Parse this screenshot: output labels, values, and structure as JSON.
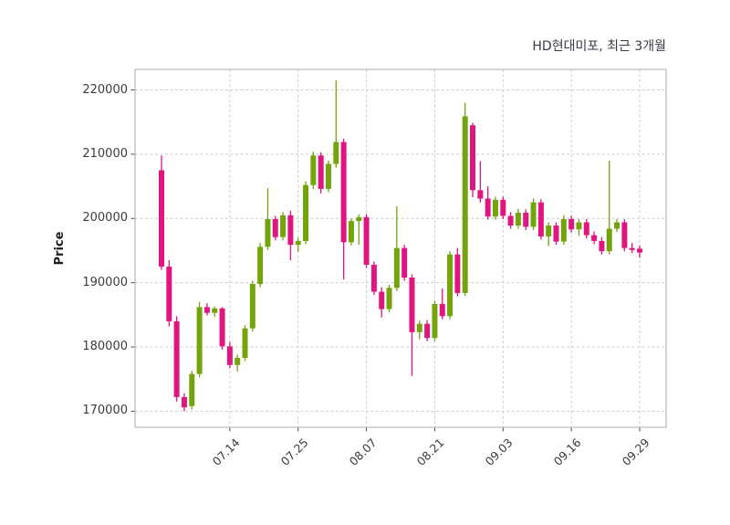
{
  "chart": {
    "title": "HD현대미포, 최근 3개월",
    "ylabel": "Price"
  },
  "colors": {
    "up": "#74a40c",
    "down": "#e0157f",
    "grid": "#cdcdcd",
    "border": "#b9b9b9",
    "tick": "#4a4a4a",
    "axis_text": "#3c3c3c",
    "title_text": "#3a3a46",
    "background": "#ffffff"
  },
  "chart_data": {
    "type": "candlestick",
    "title": "HD현대미포, 최근 3개월",
    "ylabel": "Price",
    "xlabel": "",
    "grid": "dashed",
    "legend": "none",
    "ylim": [
      167500,
      223200
    ],
    "y_ticks": [
      170000,
      180000,
      190000,
      200000,
      210000,
      220000
    ],
    "x_tick_labels": [
      "07.14",
      "07.25",
      "08.07",
      "08.21",
      "09.03",
      "09.16",
      "09.29"
    ],
    "candles_format": [
      "date",
      "open",
      "high",
      "low",
      "close"
    ],
    "candles": [
      [
        "07.01",
        207500,
        209800,
        192000,
        192500
      ],
      [
        "07.02",
        192500,
        193500,
        183200,
        184000
      ],
      [
        "07.03",
        184000,
        184800,
        171500,
        172200
      ],
      [
        "07.04",
        172200,
        172800,
        170000,
        170600
      ],
      [
        "07.07",
        170800,
        176300,
        170300,
        175800
      ],
      [
        "07.08",
        175800,
        187000,
        175300,
        186200
      ],
      [
        "07.09",
        186200,
        186800,
        184900,
        185300
      ],
      [
        "07.10",
        185300,
        186300,
        184700,
        186000
      ],
      [
        "07.11",
        186000,
        186200,
        179600,
        180100
      ],
      [
        "07.14",
        180100,
        180800,
        176700,
        177200
      ],
      [
        "07.15",
        177200,
        178800,
        176200,
        178300
      ],
      [
        "07.16",
        178300,
        183400,
        177800,
        182900
      ],
      [
        "07.17",
        182900,
        190300,
        182400,
        189800
      ],
      [
        "07.18",
        189800,
        196200,
        189300,
        195600
      ],
      [
        "07.21",
        195600,
        204700,
        195100,
        199900
      ],
      [
        "07.22",
        199900,
        200400,
        196600,
        197100
      ],
      [
        "07.23",
        197100,
        201000,
        196600,
        200500
      ],
      [
        "07.24",
        200500,
        201200,
        193500,
        195900
      ],
      [
        "07.25",
        195900,
        197000,
        194800,
        196500
      ],
      [
        "07.28",
        196500,
        205800,
        196000,
        205200
      ],
      [
        "07.29",
        205200,
        210400,
        204600,
        209800
      ],
      [
        "07.30",
        209800,
        210300,
        203900,
        204600
      ],
      [
        "07.31",
        204600,
        209000,
        204100,
        208500
      ],
      [
        "08.01",
        208500,
        221500,
        207900,
        211900
      ],
      [
        "08.04",
        211900,
        212400,
        190500,
        196300
      ],
      [
        "08.05",
        196300,
        200000,
        195800,
        199600
      ],
      [
        "08.06",
        199600,
        200600,
        195900,
        200200
      ],
      [
        "08.07",
        200200,
        200700,
        192300,
        192800
      ],
      [
        "08.08",
        192800,
        193300,
        188100,
        188600
      ],
      [
        "08.11",
        188600,
        189300,
        184600,
        185900
      ],
      [
        "08.12",
        185900,
        189700,
        185400,
        189200
      ],
      [
        "08.13",
        189200,
        201900,
        188700,
        195400
      ],
      [
        "08.14",
        195400,
        195900,
        190300,
        190800
      ],
      [
        "08.18",
        190800,
        191300,
        175500,
        182300
      ],
      [
        "08.19",
        182300,
        184100,
        181200,
        183600
      ],
      [
        "08.20",
        183600,
        184200,
        180900,
        181400
      ],
      [
        "08.21",
        181400,
        187200,
        180900,
        186700
      ],
      [
        "08.22",
        186700,
        189100,
        184300,
        184800
      ],
      [
        "08.25",
        184800,
        194900,
        184300,
        194400
      ],
      [
        "08.26",
        194400,
        195400,
        187900,
        188400
      ],
      [
        "08.27",
        188400,
        218000,
        187900,
        215900
      ],
      [
        "08.28",
        214500,
        214900,
        203300,
        204400
      ],
      [
        "08.29",
        204400,
        208900,
        202500,
        203100
      ],
      [
        "09.01",
        203100,
        205000,
        199800,
        200300
      ],
      [
        "09.02",
        200300,
        203400,
        199800,
        202900
      ],
      [
        "09.03",
        202900,
        203400,
        199900,
        200400
      ],
      [
        "09.04",
        200400,
        201000,
        198400,
        198900
      ],
      [
        "09.05",
        198900,
        201500,
        198400,
        200900
      ],
      [
        "09.08",
        200900,
        201400,
        198200,
        198700
      ],
      [
        "09.09",
        198700,
        203100,
        198200,
        202500
      ],
      [
        "09.10",
        202500,
        203000,
        196700,
        197200
      ],
      [
        "09.11",
        197200,
        199400,
        195700,
        198900
      ],
      [
        "09.12",
        198900,
        199400,
        195900,
        196400
      ],
      [
        "09.15",
        196400,
        200500,
        195900,
        199900
      ],
      [
        "09.16",
        199900,
        200400,
        197800,
        198300
      ],
      [
        "09.17",
        198300,
        199900,
        197300,
        199400
      ],
      [
        "09.18",
        199400,
        199900,
        196900,
        197400
      ],
      [
        "09.19",
        197400,
        198000,
        196000,
        196500
      ],
      [
        "09.22",
        196500,
        197100,
        194400,
        194900
      ],
      [
        "09.23",
        194900,
        209000,
        194400,
        198400
      ],
      [
        "09.24",
        198400,
        199900,
        197900,
        199400
      ],
      [
        "09.25",
        199400,
        199900,
        194900,
        195400
      ],
      [
        "09.26",
        195400,
        196200,
        194600,
        195100
      ],
      [
        "09.29",
        195300,
        195800,
        193900,
        194700
      ]
    ]
  }
}
